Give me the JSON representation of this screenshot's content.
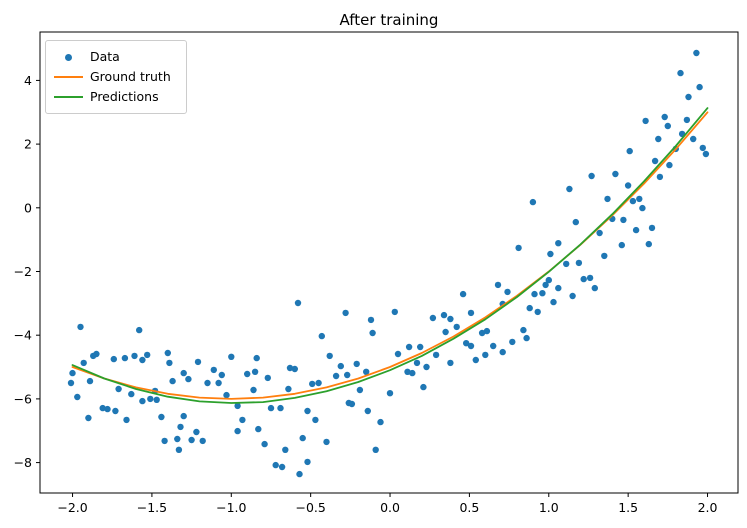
{
  "figure": {
    "title": "After training"
  },
  "legend": {
    "items": [
      {
        "label": "Data",
        "marker": "dot",
        "color": "#1f77b4"
      },
      {
        "label": "Ground truth",
        "marker": "line",
        "color": "#ff7f0e"
      },
      {
        "label": "Predictions",
        "marker": "line",
        "color": "#2ca02c"
      }
    ]
  },
  "chart_data": {
    "type": "scatter",
    "title": "After training",
    "xlabel": "",
    "ylabel": "",
    "xlim": [
      -2.205,
      2.192
    ],
    "ylim": [
      -8.955,
      5.52
    ],
    "grid": false,
    "legend_position": "upper left",
    "xticks": {
      "values": [
        -2.0,
        -1.5,
        -1.0,
        -0.5,
        0.0,
        0.5,
        1.0,
        1.5,
        2.0
      ],
      "labels": [
        "−2.0",
        "−1.5",
        "−1.0",
        "−0.5",
        "0.0",
        "0.5",
        "1.0",
        "1.5",
        "2.0"
      ]
    },
    "yticks": {
      "values": [
        4,
        2,
        0,
        -2,
        -4,
        -6,
        -8
      ],
      "labels": [
        "4",
        "2",
        "0",
        "−2",
        "−4",
        "−6",
        "−8"
      ]
    },
    "series": [
      {
        "name": "Data",
        "type": "scatter",
        "color": "#1f77b4",
        "marker_radius": 3.2,
        "points": [
          [
            1.93,
            4.86
          ],
          [
            1.83,
            4.23
          ],
          [
            1.95,
            3.79
          ],
          [
            1.88,
            3.48
          ],
          [
            1.87,
            2.76
          ],
          [
            1.73,
            2.85
          ],
          [
            1.61,
            2.73
          ],
          [
            1.75,
            2.57
          ],
          [
            1.84,
            2.32
          ],
          [
            1.69,
            2.16
          ],
          [
            1.91,
            2.16
          ],
          [
            1.8,
            1.85
          ],
          [
            1.97,
            1.88
          ],
          [
            1.99,
            1.69
          ],
          [
            1.51,
            1.78
          ],
          [
            1.67,
            1.47
          ],
          [
            1.76,
            1.34
          ],
          [
            1.42,
            1.06
          ],
          [
            1.27,
            1.0
          ],
          [
            1.7,
            0.97
          ],
          [
            1.5,
            0.7
          ],
          [
            0.9,
            0.18
          ],
          [
            1.13,
            0.59
          ],
          [
            1.37,
            0.28
          ],
          [
            1.53,
            0.21
          ],
          [
            1.57,
            0.28
          ],
          [
            1.59,
            -0.01
          ],
          [
            1.4,
            -0.35
          ],
          [
            1.47,
            -0.38
          ],
          [
            1.17,
            -0.45
          ],
          [
            1.65,
            -0.63
          ],
          [
            1.32,
            -0.79
          ],
          [
            1.55,
            -0.7
          ],
          [
            1.06,
            -1.11
          ],
          [
            0.81,
            -1.26
          ],
          [
            1.46,
            -1.17
          ],
          [
            1.63,
            -1.14
          ],
          [
            1.01,
            -1.45
          ],
          [
            1.35,
            -1.51
          ],
          [
            1.11,
            -1.76
          ],
          [
            1.19,
            -1.73
          ],
          [
            1.0,
            -2.27
          ],
          [
            1.22,
            -2.24
          ],
          [
            1.26,
            -2.2
          ],
          [
            0.98,
            -2.42
          ],
          [
            1.06,
            -2.52
          ],
          [
            0.96,
            -2.68
          ],
          [
            0.91,
            -2.71
          ],
          [
            1.29,
            -2.52
          ],
          [
            1.15,
            -2.77
          ],
          [
            1.03,
            -2.96
          ],
          [
            0.74,
            -2.64
          ],
          [
            0.88,
            -3.15
          ],
          [
            0.93,
            -3.27
          ],
          [
            0.84,
            -3.84
          ],
          [
            0.86,
            -4.09
          ],
          [
            -0.58,
            -2.99
          ],
          [
            -0.28,
            -3.3
          ],
          [
            -0.12,
            -3.52
          ],
          [
            -0.11,
            -3.93
          ],
          [
            -0.43,
            -4.03
          ],
          [
            0.03,
            -3.27
          ],
          [
            0.27,
            -3.46
          ],
          [
            0.34,
            -3.37
          ],
          [
            0.38,
            -3.49
          ],
          [
            0.46,
            -2.71
          ],
          [
            0.42,
            -3.74
          ],
          [
            0.35,
            -3.9
          ],
          [
            0.51,
            -3.3
          ],
          [
            0.58,
            -3.93
          ],
          [
            0.61,
            -3.87
          ],
          [
            0.68,
            -2.42
          ],
          [
            0.71,
            -3.02
          ],
          [
            -1.95,
            -3.74
          ],
          [
            -1.58,
            -3.84
          ],
          [
            -2.0,
            -5.19
          ],
          [
            -1.93,
            -4.87
          ],
          [
            -1.87,
            -4.65
          ],
          [
            -1.85,
            -4.59
          ],
          [
            -1.74,
            -4.75
          ],
          [
            -1.67,
            -4.72
          ],
          [
            -1.61,
            -4.65
          ],
          [
            -1.56,
            -4.78
          ],
          [
            -1.53,
            -4.62
          ],
          [
            -1.4,
            -4.56
          ],
          [
            -1.39,
            -4.87
          ],
          [
            -2.01,
            -5.5
          ],
          [
            -1.97,
            -5.94
          ],
          [
            -1.89,
            -5.44
          ],
          [
            -1.71,
            -5.69
          ],
          [
            -1.63,
            -5.85
          ],
          [
            -1.56,
            -6.07
          ],
          [
            -1.51,
            -6.0
          ],
          [
            -1.48,
            -5.75
          ],
          [
            -1.47,
            -6.03
          ],
          [
            -1.37,
            -5.44
          ],
          [
            -1.3,
            -5.19
          ],
          [
            -1.27,
            -5.38
          ],
          [
            -1.21,
            -4.84
          ],
          [
            -1.15,
            -5.5
          ],
          [
            -1.11,
            -5.09
          ],
          [
            -1.08,
            -5.5
          ],
          [
            -1.06,
            -5.25
          ],
          [
            -1.03,
            -5.88
          ],
          [
            -1.0,
            -4.68
          ],
          [
            -0.9,
            -5.22
          ],
          [
            -0.85,
            -5.15
          ],
          [
            -0.84,
            -4.72
          ],
          [
            -0.77,
            -5.34
          ],
          [
            -0.86,
            -5.72
          ],
          [
            -1.9,
            -6.6
          ],
          [
            -1.81,
            -6.29
          ],
          [
            -1.78,
            -6.32
          ],
          [
            -1.73,
            -6.38
          ],
          [
            -1.66,
            -6.66
          ],
          [
            -1.44,
            -6.57
          ],
          [
            -1.3,
            -6.54
          ],
          [
            -1.32,
            -6.88
          ],
          [
            -1.22,
            -7.04
          ],
          [
            -1.42,
            -7.32
          ],
          [
            -1.34,
            -7.26
          ],
          [
            -1.25,
            -7.29
          ],
          [
            -1.18,
            -7.32
          ],
          [
            -1.33,
            -7.6
          ],
          [
            -0.96,
            -6.22
          ],
          [
            -0.93,
            -6.66
          ],
          [
            -0.96,
            -7.01
          ],
          [
            -0.83,
            -6.95
          ],
          [
            -0.75,
            -6.29
          ],
          [
            -0.69,
            -6.29
          ],
          [
            -0.79,
            -7.42
          ],
          [
            -0.63,
            -5.03
          ],
          [
            -0.6,
            -5.06
          ],
          [
            -0.38,
            -4.65
          ],
          [
            -0.31,
            -4.97
          ],
          [
            -0.34,
            -5.28
          ],
          [
            -0.27,
            -5.25
          ],
          [
            -0.21,
            -4.9
          ],
          [
            -0.15,
            -5.15
          ],
          [
            -0.49,
            -5.53
          ],
          [
            -0.64,
            -5.69
          ],
          [
            -0.45,
            -5.5
          ],
          [
            -0.19,
            -5.72
          ],
          [
            0.0,
            -5.82
          ],
          [
            -0.26,
            -6.13
          ],
          [
            -0.24,
            -6.16
          ],
          [
            -0.14,
            -6.38
          ],
          [
            -0.52,
            -6.38
          ],
          [
            -0.47,
            -6.66
          ],
          [
            -0.06,
            -6.73
          ],
          [
            -0.55,
            -7.23
          ],
          [
            -0.4,
            -7.35
          ],
          [
            -0.66,
            -7.6
          ],
          [
            -0.09,
            -7.6
          ],
          [
            -0.52,
            -7.98
          ],
          [
            -0.57,
            -8.36
          ],
          [
            -0.72,
            -8.08
          ],
          [
            -0.68,
            -8.14
          ],
          [
            0.05,
            -4.59
          ],
          [
            0.12,
            -4.37
          ],
          [
            0.19,
            -4.37
          ],
          [
            0.11,
            -5.15
          ],
          [
            0.14,
            -5.19
          ],
          [
            0.17,
            -4.87
          ],
          [
            0.23,
            -5.0
          ],
          [
            0.29,
            -4.62
          ],
          [
            0.38,
            -4.87
          ],
          [
            0.21,
            -5.63
          ],
          [
            0.48,
            -4.25
          ],
          [
            0.51,
            -4.34
          ],
          [
            0.6,
            -4.62
          ],
          [
            0.54,
            -4.78
          ],
          [
            0.65,
            -4.34
          ],
          [
            0.71,
            -4.53
          ],
          [
            0.77,
            -4.21
          ]
        ]
      },
      {
        "name": "Ground truth",
        "type": "line",
        "color": "#ff7f0e",
        "line_width": 1.8,
        "points": [
          [
            -2.0,
            -5.0
          ],
          [
            -1.8,
            -5.36
          ],
          [
            -1.6,
            -5.64
          ],
          [
            -1.4,
            -5.84
          ],
          [
            -1.2,
            -5.96
          ],
          [
            -1.0,
            -6.0
          ],
          [
            -0.8,
            -5.96
          ],
          [
            -0.6,
            -5.84
          ],
          [
            -0.4,
            -5.64
          ],
          [
            -0.2,
            -5.36
          ],
          [
            0.0,
            -5.0
          ],
          [
            0.2,
            -4.56
          ],
          [
            0.4,
            -4.04
          ],
          [
            0.6,
            -3.44
          ],
          [
            0.8,
            -2.76
          ],
          [
            1.0,
            -2.0
          ],
          [
            1.2,
            -1.16
          ],
          [
            1.4,
            -0.24
          ],
          [
            1.6,
            0.76
          ],
          [
            1.8,
            1.84
          ],
          [
            2.0,
            3.0
          ]
        ]
      },
      {
        "name": "Predictions",
        "type": "line",
        "color": "#2ca02c",
        "line_width": 1.8,
        "points": [
          [
            -2.0,
            -4.94
          ],
          [
            -1.8,
            -5.36
          ],
          [
            -1.6,
            -5.69
          ],
          [
            -1.4,
            -5.93
          ],
          [
            -1.2,
            -6.08
          ],
          [
            -1.0,
            -6.13
          ],
          [
            -0.8,
            -6.1
          ],
          [
            -0.6,
            -5.97
          ],
          [
            -0.4,
            -5.76
          ],
          [
            -0.2,
            -5.47
          ],
          [
            0.0,
            -5.1
          ],
          [
            0.2,
            -4.65
          ],
          [
            0.4,
            -4.11
          ],
          [
            0.6,
            -3.5
          ],
          [
            0.8,
            -2.8
          ],
          [
            1.0,
            -2.01
          ],
          [
            1.2,
            -1.15
          ],
          [
            1.4,
            -0.2
          ],
          [
            1.6,
            0.83
          ],
          [
            1.8,
            1.94
          ],
          [
            2.0,
            3.13
          ]
        ]
      }
    ]
  }
}
